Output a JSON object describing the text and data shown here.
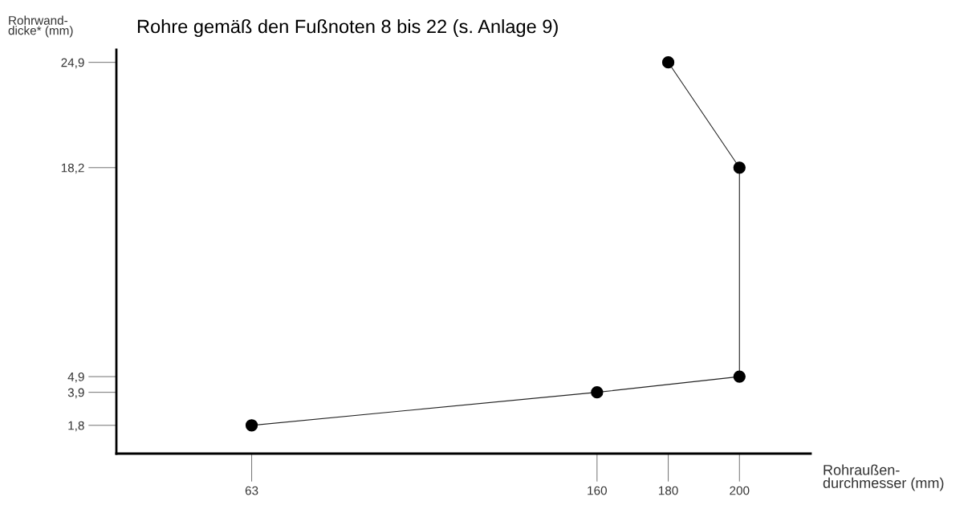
{
  "chart_data": {
    "type": "line",
    "title": "Rohre gemäß den Fußnoten 8 bis 22 (s. Anlage 9)",
    "xlabel": "Rohraußen-\ndurchmesser (mm)",
    "ylabel": "Rohrwand-\ndicke* (mm)",
    "x": [
      63,
      160,
      200,
      200,
      180
    ],
    "series": [
      {
        "color": "#222222",
        "values": [
          1.8,
          3.9,
          4.9,
          18.2,
          24.9
        ]
      }
    ],
    "xlim": [
      25,
      220
    ],
    "ylim": [
      0,
      25.7
    ],
    "xticks": [
      63,
      160,
      180,
      200
    ],
    "yticks": [
      {
        "value": 1.8,
        "label": "1,8"
      },
      {
        "value": 3.9,
        "label": "3,9"
      },
      {
        "value": 4.9,
        "label": "4,9"
      },
      {
        "value": 18.2,
        "label": "18,2"
      },
      {
        "value": 24.9,
        "label": "24,9"
      }
    ],
    "marker": "circle",
    "line_style": "solid",
    "grid": false,
    "legend": false
  }
}
